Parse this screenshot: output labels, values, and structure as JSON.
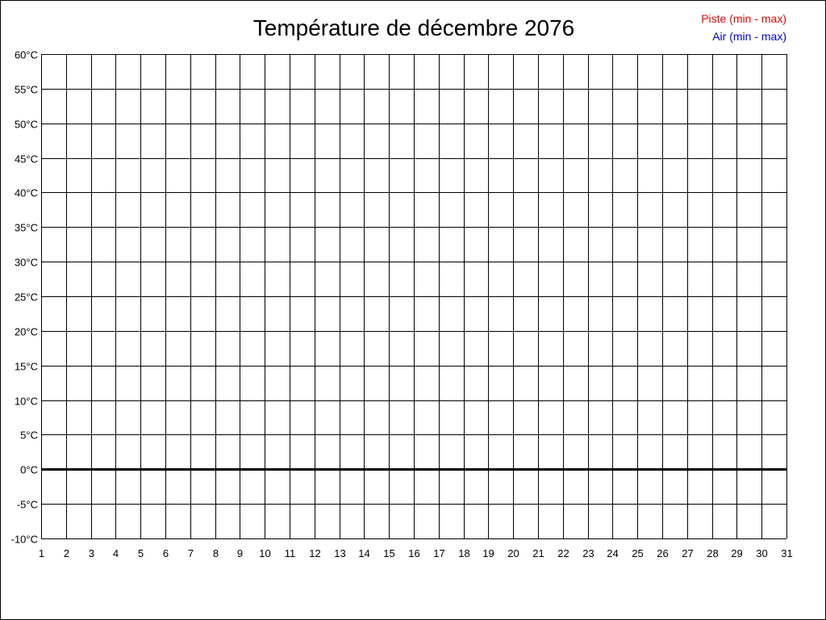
{
  "chart_data": {
    "type": "line",
    "title": "Température de décembre 2076",
    "xlabel": "",
    "ylabel": "",
    "x_ticks": [
      1,
      2,
      3,
      4,
      5,
      6,
      7,
      8,
      9,
      10,
      11,
      12,
      13,
      14,
      15,
      16,
      17,
      18,
      19,
      20,
      21,
      22,
      23,
      24,
      25,
      26,
      27,
      28,
      29,
      30,
      31
    ],
    "xlim": [
      1,
      31
    ],
    "ylim": [
      -10,
      60
    ],
    "y_ticks": [
      -10,
      -5,
      0,
      5,
      10,
      15,
      20,
      25,
      30,
      35,
      40,
      45,
      50,
      55,
      60
    ],
    "y_unit": "°C",
    "grid": true,
    "legend_placement": "top-right",
    "series": [
      {
        "name": "Piste (min - max)",
        "color": "#ff0000",
        "values": []
      },
      {
        "name": "Air (min - max)",
        "color": "#0000ff",
        "values": []
      }
    ],
    "zero_line": 0
  }
}
